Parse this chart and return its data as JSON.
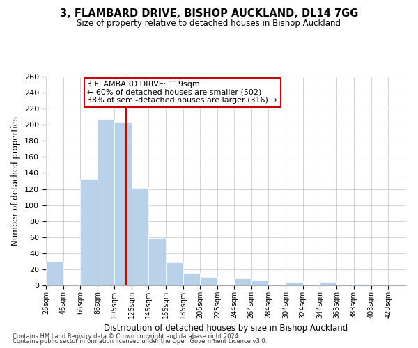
{
  "title": "3, FLAMBARD DRIVE, BISHOP AUCKLAND, DL14 7GG",
  "subtitle": "Size of property relative to detached houses in Bishop Auckland",
  "bar_labels": [
    "26sqm",
    "46sqm",
    "66sqm",
    "86sqm",
    "105sqm",
    "125sqm",
    "145sqm",
    "165sqm",
    "185sqm",
    "205sqm",
    "225sqm",
    "244sqm",
    "264sqm",
    "284sqm",
    "304sqm",
    "324sqm",
    "344sqm",
    "363sqm",
    "383sqm",
    "403sqm",
    "423sqm"
  ],
  "bar_values": [
    30,
    0,
    133,
    207,
    203,
    121,
    59,
    29,
    16,
    10,
    0,
    9,
    6,
    0,
    4,
    0,
    4,
    0,
    2,
    0,
    1
  ],
  "bar_color": "#b8d0e8",
  "vline_x": 119,
  "vline_color": "#cc0000",
  "xlabel": "Distribution of detached houses by size in Bishop Auckland",
  "ylabel": "Number of detached properties",
  "ylim": [
    0,
    260
  ],
  "yticks": [
    0,
    20,
    40,
    60,
    80,
    100,
    120,
    140,
    160,
    180,
    200,
    220,
    240,
    260
  ],
  "annotation_title": "3 FLAMBARD DRIVE: 119sqm",
  "annotation_line1": "← 60% of detached houses are smaller (502)",
  "annotation_line2": "38% of semi-detached houses are larger (316) →",
  "footer1": "Contains HM Land Registry data © Crown copyright and database right 2024.",
  "footer2": "Contains public sector information licensed under the Open Government Licence v3.0.",
  "bin_edges": [
    26,
    46,
    66,
    86,
    105,
    125,
    145,
    165,
    185,
    205,
    225,
    244,
    264,
    284,
    304,
    324,
    344,
    363,
    383,
    403,
    423,
    443
  ],
  "background_color": "#ffffff",
  "grid_color": "#cccccc"
}
